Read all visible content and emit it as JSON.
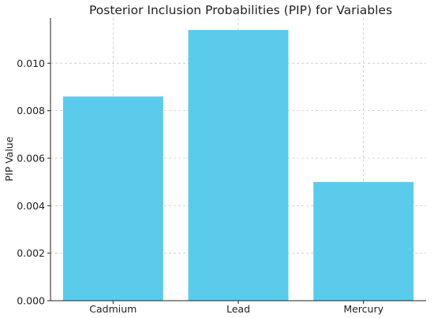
{
  "chart_data": {
    "type": "bar",
    "title": "Posterior Inclusion Probabilities (PIP) for Variables",
    "xlabel": "",
    "ylabel": "PIP Value",
    "categories": [
      "Cadmium",
      "Lead",
      "Mercury"
    ],
    "values": [
      0.0086,
      0.0114,
      0.005
    ],
    "ylim": [
      0,
      0.0119
    ],
    "yticks": [
      0,
      0.002,
      0.004,
      0.006,
      0.008,
      0.01
    ],
    "ytick_labels": [
      "0.000",
      "0.002",
      "0.004",
      "0.006",
      "0.008",
      "0.010"
    ],
    "grid": true,
    "bar_color": "#5bcbec"
  }
}
